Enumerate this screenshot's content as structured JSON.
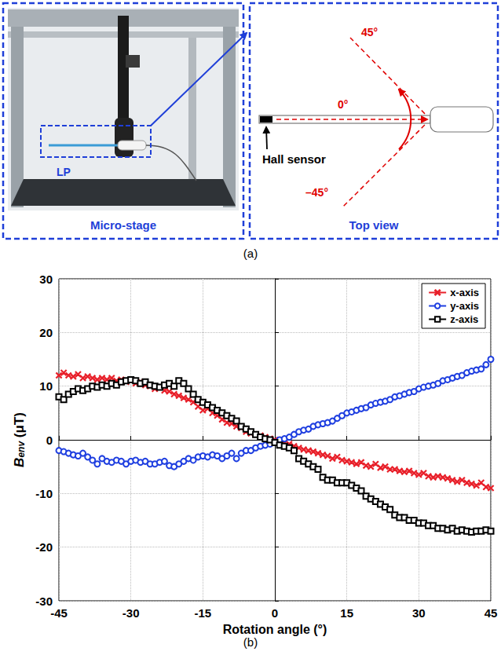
{
  "panel_a": {
    "label": "(a)",
    "photo_caption": "Micro-stage",
    "photo_tag": "LP",
    "diagram_caption": "Top view",
    "sensor_label": "Hall sensor",
    "angles": [
      "45°",
      "0°",
      "–45°"
    ]
  },
  "chart_data": {
    "type": "line",
    "title": "(b)",
    "x_label": "Rotation angle (°)",
    "y_label": {
      "symbol": "B",
      "subscript": "env",
      "unit": "(μT)"
    },
    "x": [
      -45,
      -44,
      -43,
      -42,
      -41,
      -40,
      -39,
      -38,
      -37,
      -36,
      -35,
      -34,
      -33,
      -32,
      -31,
      -30,
      -29,
      -28,
      -27,
      -26,
      -25,
      -24,
      -23,
      -22,
      -21,
      -20,
      -19,
      -18,
      -17,
      -16,
      -15,
      -14,
      -13,
      -12,
      -11,
      -10,
      -9,
      -8,
      -7,
      -6,
      -5,
      -4,
      -3,
      -2,
      -1,
      0,
      1,
      2,
      3,
      4,
      5,
      6,
      7,
      8,
      9,
      10,
      11,
      12,
      13,
      14,
      15,
      16,
      17,
      18,
      19,
      20,
      21,
      22,
      23,
      24,
      25,
      26,
      27,
      28,
      29,
      30,
      31,
      32,
      33,
      34,
      35,
      36,
      37,
      38,
      39,
      40,
      41,
      42,
      43,
      44,
      45
    ],
    "series": [
      {
        "name": "x-axis",
        "color": "#e8202a",
        "marker": "x",
        "line_style": "solid",
        "values": [
          12,
          12.5,
          12,
          11.8,
          12.2,
          11.5,
          11.8,
          11.5,
          11.2,
          11.5,
          11.2,
          11.5,
          11,
          11.2,
          10.8,
          11,
          10.5,
          10.8,
          10.2,
          10,
          9.5,
          9.8,
          9.2,
          9,
          8.5,
          8.2,
          7.8,
          7.5,
          7,
          6.2,
          5.5,
          5.8,
          5,
          4.5,
          3.8,
          3.2,
          3,
          2.5,
          2.2,
          1.5,
          1.2,
          1,
          0.8,
          0.5,
          0.2,
          0,
          -0.2,
          -0.5,
          -0.8,
          -1.2,
          -1.5,
          -1.8,
          -2,
          -2.2,
          -2.5,
          -2.8,
          -3,
          -3.5,
          -3.2,
          -3.8,
          -4,
          -4.2,
          -4.5,
          -4.2,
          -4.8,
          -5,
          -4.5,
          -5.2,
          -5,
          -5.5,
          -5.5,
          -5.8,
          -6,
          -5.8,
          -6.2,
          -6.5,
          -6.2,
          -6.8,
          -7,
          -6.8,
          -7,
          -7.2,
          -7.5,
          -7.8,
          -7.5,
          -8,
          -8.2,
          -8.5,
          -8,
          -8.8,
          -9
        ]
      },
      {
        "name": "y-axis",
        "color": "#1f3fe0",
        "marker": "circle",
        "line_style": "solid",
        "values": [
          -2,
          -2.2,
          -2.5,
          -2.8,
          -3,
          -2.5,
          -3.2,
          -3.8,
          -4.5,
          -3.5,
          -4,
          -4.2,
          -3.8,
          -4,
          -4.5,
          -4,
          -3.8,
          -4.2,
          -4,
          -4.5,
          -4.5,
          -4.2,
          -4,
          -4.8,
          -5,
          -4.5,
          -4,
          -3.5,
          -3.8,
          -3.2,
          -3,
          -3.2,
          -2.8,
          -3,
          -3.5,
          -3,
          -2.5,
          -3.5,
          -2.5,
          -2,
          -2,
          -1.5,
          -1.2,
          -1,
          -0.8,
          -0.5,
          0,
          0.2,
          0.5,
          1,
          1.5,
          1.8,
          2,
          2.5,
          2.8,
          3,
          3.2,
          3.5,
          4,
          4.5,
          5,
          5.2,
          5.5,
          5.8,
          6,
          6.5,
          6.8,
          7,
          7.2,
          7.5,
          8,
          8.2,
          8.5,
          8.8,
          9,
          9.5,
          9.8,
          10,
          10.2,
          10.5,
          11,
          11.2,
          11.5,
          11.8,
          12,
          12.5,
          12.8,
          13,
          13.2,
          14,
          15
        ]
      },
      {
        "name": "z-axis",
        "color": "#000000",
        "marker": "square",
        "line_style": "solid",
        "values": [
          8,
          7.5,
          8.5,
          9,
          9.5,
          9.2,
          9.5,
          10,
          9.8,
          10.2,
          10,
          10.5,
          10.2,
          10.8,
          11,
          11.2,
          11,
          10.5,
          10.8,
          10.2,
          10,
          9.8,
          10.2,
          10.5,
          10,
          11,
          10.5,
          9.5,
          8.5,
          7.5,
          7,
          6.5,
          6,
          5.5,
          5,
          4.5,
          4,
          3.5,
          2.5,
          2,
          1.5,
          1,
          0.5,
          0.2,
          0,
          -0.5,
          -1,
          -1.2,
          -1.5,
          -2,
          -3.5,
          -4,
          -4.5,
          -5,
          -5.5,
          -7,
          -7.5,
          -7.5,
          -8,
          -8,
          -8,
          -8.5,
          -9,
          -9.5,
          -10.5,
          -11,
          -11.5,
          -12,
          -12.5,
          -13,
          -14,
          -14.5,
          -14.5,
          -15,
          -15,
          -15.5,
          -15.5,
          -16,
          -16,
          -16.5,
          -16.5,
          -16.8,
          -16.5,
          -17,
          -16.8,
          -17,
          -17.2,
          -17,
          -17,
          -16.8,
          -17
        ]
      }
    ],
    "xlim": [
      -45,
      45
    ],
    "xticks": [
      -45,
      -30,
      -15,
      0,
      15,
      30,
      45
    ],
    "ylim": [
      -30,
      30
    ],
    "yticks": [
      -30,
      -20,
      -10,
      0,
      10,
      20,
      30
    ],
    "grid": true,
    "legend": "upper right"
  }
}
